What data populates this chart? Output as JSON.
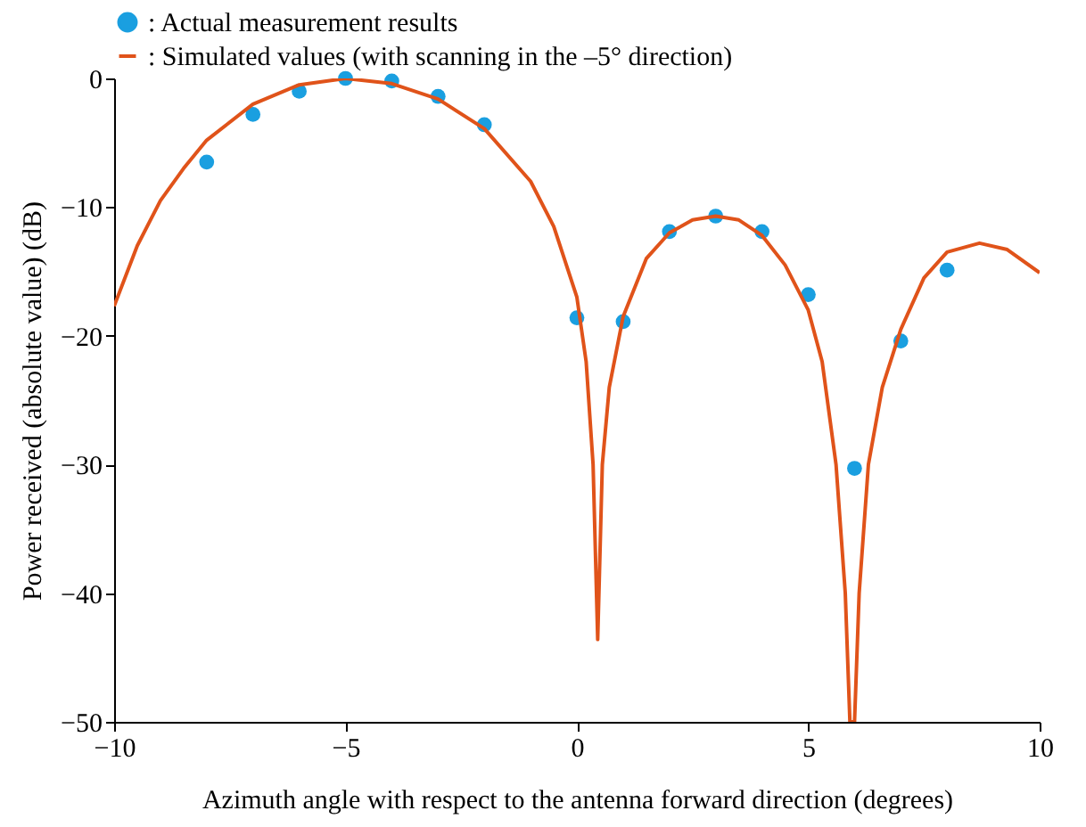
{
  "chart_data": {
    "type": "line",
    "xlabel": "Azimuth angle with respect to the antenna forward direction  (degrees)",
    "ylabel": "Power received (absolute value)  (dB)",
    "xlim": [
      -10,
      10
    ],
    "xticks": [
      -10,
      -5,
      0,
      5,
      10
    ],
    "ylim": [
      -50,
      0
    ],
    "yticks": [
      -50,
      -40,
      -30,
      -20,
      -10,
      0
    ],
    "grid": false,
    "legend": "top left",
    "series": [
      {
        "name": ": Actual measurement results",
        "type": "scatter",
        "marker": "circle",
        "color": "#1a9fe0",
        "x": [
          -8,
          -7,
          -6,
          -5,
          -4,
          -3,
          -2,
          0,
          1,
          2,
          3,
          4,
          5,
          6,
          7,
          8
        ],
        "values": [
          -6.5,
          -2.8,
          -1.0,
          0,
          -0.2,
          -1.4,
          -3.6,
          -18.6,
          -18.9,
          -11.9,
          -10.7,
          -11.9,
          -16.8,
          -30.3,
          -20.4,
          -14.9
        ]
      },
      {
        "name": ": Simulated values (with scanning in the –5° direction)",
        "type": "line",
        "line_style": "solid",
        "color": "#e0531a",
        "x": [
          -10,
          -9.5,
          -9,
          -8.5,
          -8,
          -7,
          -6,
          -5,
          -4,
          -3,
          -2,
          -1,
          -0.5,
          0,
          0.2,
          0.35,
          0.45,
          0.55,
          0.7,
          1,
          1.5,
          2,
          2.5,
          3,
          3.5,
          4,
          4.5,
          5,
          5.3,
          5.6,
          5.8,
          5.9,
          6.0,
          6.1,
          6.3,
          6.6,
          7,
          7.5,
          8,
          8.7,
          9.3,
          10
        ],
        "values": [
          -17.7,
          -13,
          -9.5,
          -7,
          -4.8,
          -2.0,
          -0.5,
          0,
          -0.4,
          -1.6,
          -3.9,
          -8,
          -11.5,
          -17,
          -22,
          -30,
          -43.6,
          -30,
          -24,
          -18.5,
          -14,
          -12,
          -11,
          -10.7,
          -11,
          -12.2,
          -14.5,
          -18,
          -22,
          -30,
          -40,
          -50,
          -50,
          -40,
          -30,
          -24,
          -19.5,
          -15.5,
          -13.5,
          -12.8,
          -13.3,
          -15.1
        ]
      }
    ]
  }
}
